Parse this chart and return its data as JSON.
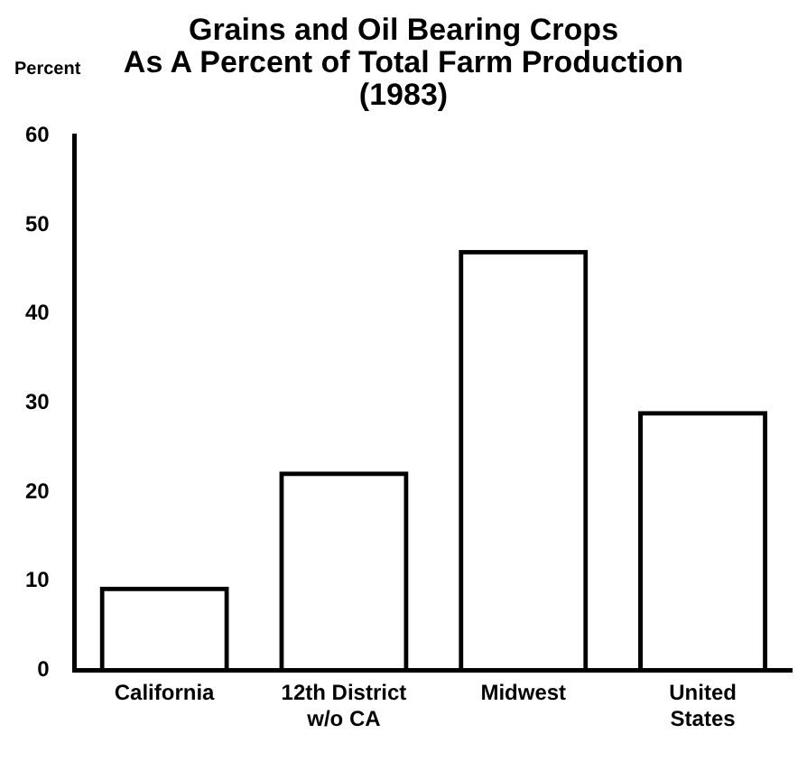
{
  "chart_data": {
    "type": "bar",
    "title": "Grains and Oil Bearing Crops\nAs A Percent of Total Farm Production\n(1983)",
    "ylabel": "Percent",
    "categories": [
      "California",
      "12th District\nw/o CA",
      "Midwest",
      "United\nStates"
    ],
    "values": [
      9.4,
      22.3,
      47.2,
      29.1
    ],
    "color": "#000000",
    "ylim": [
      0,
      60
    ],
    "yticks": [
      0,
      10,
      20,
      30,
      40,
      50,
      60
    ],
    "grid": false,
    "legend": false
  }
}
